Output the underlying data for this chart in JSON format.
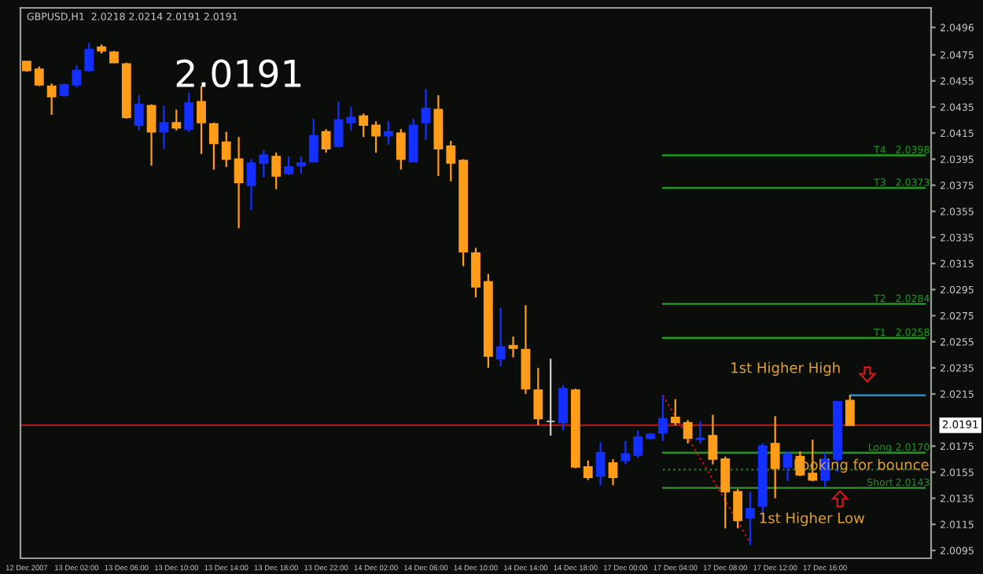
{
  "chart_data": {
    "type": "candlestick",
    "title": "GBPUSD,H1  2.0218 2.0214 2.0191 2.0191",
    "categories": [
      "12 Dec 2007",
      null,
      null,
      null,
      "13 Dec 02:00",
      null,
      null,
      null,
      "13 Dec 06:00",
      null,
      null,
      null,
      "13 Dec 10:00",
      null,
      null,
      null,
      "13 Dec 14:00",
      null,
      null,
      null,
      "13 Dec 18:00",
      null,
      null,
      null,
      "13 Dec 22:00",
      null,
      null,
      null,
      "14 Dec 02:00",
      null,
      null,
      null,
      "14 Dec 06:00",
      null,
      null,
      null,
      "14 Dec 10:00",
      null,
      null,
      null,
      "14 Dec 14:00",
      null,
      null,
      null,
      "14 Dec 18:00",
      null,
      null,
      null,
      "17 Dec 00:00",
      null,
      null,
      null,
      "17 Dec 04:00",
      null,
      null,
      null,
      "17 Dec 08:00",
      null,
      null,
      null,
      "17 Dec 12:00",
      null,
      null,
      null,
      "17 Dec 16:00",
      null,
      null,
      null,
      null,
      null,
      null,
      null,
      null
    ],
    "ohlc": [
      [
        2.047,
        2.047,
        2.0462,
        2.0463
      ],
      [
        2.0464,
        2.0466,
        2.0451,
        2.0452
      ],
      [
        2.0451,
        2.0453,
        2.0429,
        2.0443
      ],
      [
        2.0444,
        2.0453,
        2.0443,
        2.0452
      ],
      [
        2.0452,
        2.0467,
        2.045,
        2.0463
      ],
      [
        2.0463,
        2.0484,
        2.0462,
        2.0479
      ],
      [
        2.0481,
        2.0483,
        2.0476,
        2.0478
      ],
      [
        2.0477,
        2.0478,
        2.0469,
        2.0469
      ],
      [
        2.0468,
        2.0469,
        2.0426,
        2.0427
      ],
      [
        2.0421,
        2.0444,
        2.0417,
        2.0437
      ],
      [
        2.0436,
        2.0437,
        2.039,
        2.0416
      ],
      [
        2.0416,
        2.0436,
        2.0403,
        2.0423
      ],
      [
        2.0423,
        2.0433,
        2.0417,
        2.0419
      ],
      [
        2.0418,
        2.0446,
        2.0416,
        2.0438
      ],
      [
        2.0439,
        2.0451,
        2.0399,
        2.0423
      ],
      [
        2.0422,
        2.0423,
        2.0387,
        2.0407
      ],
      [
        2.0408,
        2.0416,
        2.0389,
        2.0395
      ],
      [
        2.0395,
        2.0412,
        2.0342,
        2.0377
      ],
      [
        2.0375,
        2.0395,
        2.0356,
        2.0392
      ],
      [
        2.0392,
        2.0402,
        2.0381,
        2.0398
      ],
      [
        2.0397,
        2.04,
        2.0372,
        2.0382
      ],
      [
        2.0384,
        2.0397,
        2.0383,
        2.0389
      ],
      [
        2.039,
        2.0397,
        2.0384,
        2.0392
      ],
      [
        2.0393,
        2.0426,
        2.0393,
        2.0413
      ],
      [
        2.0416,
        2.0418,
        2.04,
        2.0403
      ],
      [
        2.0405,
        2.0439,
        2.0404,
        2.0425
      ],
      [
        2.0423,
        2.0435,
        2.0417,
        2.0427
      ],
      [
        2.0428,
        2.043,
        2.0412,
        2.0421
      ],
      [
        2.0421,
        2.0424,
        2.04,
        2.0413
      ],
      [
        2.0413,
        2.0424,
        2.0406,
        2.0416
      ],
      [
        2.0415,
        2.0418,
        2.0387,
        2.0395
      ],
      [
        2.0393,
        2.0426,
        2.0393,
        2.0421
      ],
      [
        2.0423,
        2.0449,
        2.041,
        2.0434
      ],
      [
        2.0433,
        2.0444,
        2.0382,
        2.0403
      ],
      [
        2.0405,
        2.0409,
        2.0378,
        2.0392
      ],
      [
        2.0394,
        2.0395,
        2.0313,
        2.0324
      ],
      [
        2.0323,
        2.0327,
        2.0289,
        2.0297
      ],
      [
        2.0301,
        2.0307,
        2.0235,
        2.0244
      ],
      [
        2.0242,
        2.0281,
        2.0236,
        2.0251
      ],
      [
        2.0252,
        2.0259,
        2.0243,
        2.025
      ],
      [
        2.0249,
        2.0283,
        2.0215,
        2.0219
      ],
      [
        2.0218,
        2.0235,
        2.0191,
        2.0196
      ],
      [
        2.0194,
        2.0242,
        2.0183,
        2.0194
      ],
      [
        2.0193,
        2.0222,
        2.0187,
        2.0219
      ],
      [
        2.0218,
        2.0219,
        2.0158,
        2.0159
      ],
      [
        2.0159,
        2.0164,
        2.0149,
        2.0151
      ],
      [
        2.0152,
        2.0178,
        2.0145,
        2.017
      ],
      [
        2.0162,
        2.0165,
        2.0145,
        2.0151
      ],
      [
        2.0164,
        2.0179,
        2.0161,
        2.0169
      ],
      [
        2.0168,
        2.0187,
        2.0166,
        2.0182
      ],
      [
        2.0181,
        2.0185,
        2.018,
        2.0184
      ],
      [
        2.0185,
        2.0214,
        2.0179,
        2.0196
      ],
      [
        2.0197,
        2.0211,
        2.0191,
        2.0193
      ],
      [
        2.0193,
        2.0195,
        2.0177,
        2.0181
      ],
      [
        2.018,
        2.0194,
        2.0177,
        2.0181
      ],
      [
        2.0183,
        2.0199,
        2.0161,
        2.0165
      ],
      [
        2.0165,
        2.0167,
        2.0112,
        2.014
      ],
      [
        2.014,
        2.0142,
        2.0112,
        2.0118
      ],
      [
        2.012,
        2.014,
        2.0099,
        2.0127
      ],
      [
        2.0129,
        2.0177,
        2.0117,
        2.0175
      ],
      [
        2.0177,
        2.0198,
        2.0135,
        2.0158
      ],
      [
        2.0159,
        2.0171,
        2.0148,
        2.0169
      ],
      [
        2.0167,
        2.0171,
        2.0152,
        2.0153
      ],
      [
        2.0154,
        2.018,
        2.0148,
        2.0149
      ],
      [
        2.0149,
        2.017,
        2.0144,
        2.0165
      ],
      [
        2.0165,
        2.0209,
        2.0155,
        2.0209
      ],
      [
        2.021,
        2.0214,
        2.0191,
        2.0191
      ],
      null,
      null,
      null,
      null,
      null,
      null
    ],
    "colors": [
      "#ff9c1a",
      "#ff9c1a",
      "#ff9c1a",
      "#1430ff",
      "#1430ff",
      "#1430ff",
      "#ff9c1a",
      "#ff9c1a",
      "#ff9c1a",
      "#1430ff",
      "#ff9c1a",
      "#1430ff",
      "#ff9c1a",
      "#1430ff",
      "#ff9c1a",
      "#ff9c1a",
      "#ff9c1a",
      "#ff9c1a",
      "#1430ff",
      "#1430ff",
      "#ff9c1a",
      "#1430ff",
      "#1430ff",
      "#1430ff",
      "#ff9c1a",
      "#1430ff",
      "#1430ff",
      "#ff9c1a",
      "#ff9c1a",
      "#1430ff",
      "#ff9c1a",
      "#1430ff",
      "#1430ff",
      "#ff9c1a",
      "#ff9c1a",
      "#ff9c1a",
      "#ff9c1a",
      "#ff9c1a",
      "#1430ff",
      "#ff9c1a",
      "#ff9c1a",
      "#ff9c1a",
      "#d0d0d0",
      "#1430ff",
      "#ff9c1a",
      "#ff9c1a",
      "#1430ff",
      "#ff9c1a",
      "#1430ff",
      "#1430ff",
      "#1430ff",
      "#1430ff",
      "#ff9c1a",
      "#ff9c1a",
      "#1430ff",
      "#ff9c1a",
      "#ff9c1a",
      "#ff9c1a",
      "#1430ff",
      "#1430ff",
      "#ff9c1a",
      "#1430ff",
      "#ff9c1a",
      "#ff9c1a",
      "#1430ff",
      "#1430ff",
      "#ff9c1a",
      null,
      null,
      null,
      null,
      null,
      null
    ],
    "series": [
      {
        "type": "line",
        "name": "T4",
        "color": "#1f9a1f",
        "line_style": "solid",
        "values": [
          null,
          null,
          null,
          null,
          null,
          null,
          null,
          null,
          null,
          null,
          null,
          null,
          null,
          null,
          null,
          null,
          null,
          null,
          null,
          null,
          null,
          null,
          null,
          null,
          null,
          null,
          null,
          null,
          null,
          null,
          null,
          null,
          null,
          null,
          null,
          null,
          null,
          null,
          null,
          null,
          null,
          null,
          null,
          null,
          null,
          null,
          null,
          null,
          null,
          null,
          null,
          2.0398,
          null,
          null,
          null,
          null,
          null,
          null,
          null,
          null,
          null,
          null,
          null,
          null,
          null,
          null,
          null,
          null,
          null,
          null,
          null,
          null,
          2.0398
        ],
        "value_labels": [
          null,
          null,
          null,
          null,
          null,
          null,
          null,
          null,
          null,
          null,
          null,
          null,
          null,
          null,
          null,
          null,
          null,
          null,
          null,
          null,
          null,
          null,
          null,
          null,
          null,
          null,
          null,
          null,
          null,
          null,
          null,
          null,
          null,
          null,
          null,
          null,
          null,
          null,
          null,
          null,
          null,
          null,
          null,
          null,
          null,
          null,
          null,
          null,
          null,
          null,
          null,
          null,
          null,
          null,
          null,
          null,
          null,
          null,
          null,
          null,
          null,
          null,
          null,
          null,
          null,
          null,
          null,
          null,
          null,
          null,
          null,
          null,
          "2.0398"
        ]
      },
      {
        "type": "line",
        "name": "T3",
        "color": "#1f9a1f",
        "line_style": "solid",
        "values": [
          null,
          null,
          null,
          null,
          null,
          null,
          null,
          null,
          null,
          null,
          null,
          null,
          null,
          null,
          null,
          null,
          null,
          null,
          null,
          null,
          null,
          null,
          null,
          null,
          null,
          null,
          null,
          null,
          null,
          null,
          null,
          null,
          null,
          null,
          null,
          null,
          null,
          null,
          null,
          null,
          null,
          null,
          null,
          null,
          null,
          null,
          null,
          null,
          null,
          null,
          null,
          2.0373,
          null,
          null,
          null,
          null,
          null,
          null,
          null,
          null,
          null,
          null,
          null,
          null,
          null,
          null,
          null,
          null,
          null,
          null,
          null,
          null,
          2.0373
        ],
        "value_labels": [
          null,
          null,
          null,
          null,
          null,
          null,
          null,
          null,
          null,
          null,
          null,
          null,
          null,
          null,
          null,
          null,
          null,
          null,
          null,
          null,
          null,
          null,
          null,
          null,
          null,
          null,
          null,
          null,
          null,
          null,
          null,
          null,
          null,
          null,
          null,
          null,
          null,
          null,
          null,
          null,
          null,
          null,
          null,
          null,
          null,
          null,
          null,
          null,
          null,
          null,
          null,
          null,
          null,
          null,
          null,
          null,
          null,
          null,
          null,
          null,
          null,
          null,
          null,
          null,
          null,
          null,
          null,
          null,
          null,
          null,
          null,
          null,
          "2.0373"
        ]
      },
      {
        "type": "line",
        "name": "T2",
        "color": "#1f9a1f",
        "line_style": "solid",
        "values": [
          null,
          null,
          null,
          null,
          null,
          null,
          null,
          null,
          null,
          null,
          null,
          null,
          null,
          null,
          null,
          null,
          null,
          null,
          null,
          null,
          null,
          null,
          null,
          null,
          null,
          null,
          null,
          null,
          null,
          null,
          null,
          null,
          null,
          null,
          null,
          null,
          null,
          null,
          null,
          null,
          null,
          null,
          null,
          null,
          null,
          null,
          null,
          null,
          null,
          null,
          null,
          2.0284,
          null,
          null,
          null,
          null,
          null,
          null,
          null,
          null,
          null,
          null,
          null,
          null,
          null,
          null,
          null,
          null,
          null,
          null,
          null,
          null,
          2.0284
        ],
        "value_labels": [
          null,
          null,
          null,
          null,
          null,
          null,
          null,
          null,
          null,
          null,
          null,
          null,
          null,
          null,
          null,
          null,
          null,
          null,
          null,
          null,
          null,
          null,
          null,
          null,
          null,
          null,
          null,
          null,
          null,
          null,
          null,
          null,
          null,
          null,
          null,
          null,
          null,
          null,
          null,
          null,
          null,
          null,
          null,
          null,
          null,
          null,
          null,
          null,
          null,
          null,
          null,
          null,
          null,
          null,
          null,
          null,
          null,
          null,
          null,
          null,
          null,
          null,
          null,
          null,
          null,
          null,
          null,
          null,
          null,
          null,
          null,
          null,
          "2.0284"
        ]
      },
      {
        "type": "line",
        "name": "T1",
        "color": "#1f9a1f",
        "line_style": "solid",
        "values": [
          null,
          null,
          null,
          null,
          null,
          null,
          null,
          null,
          null,
          null,
          null,
          null,
          null,
          null,
          null,
          null,
          null,
          null,
          null,
          null,
          null,
          null,
          null,
          null,
          null,
          null,
          null,
          null,
          null,
          null,
          null,
          null,
          null,
          null,
          null,
          null,
          null,
          null,
          null,
          null,
          null,
          null,
          null,
          null,
          null,
          null,
          null,
          null,
          null,
          null,
          null,
          2.0258,
          null,
          null,
          null,
          null,
          null,
          null,
          null,
          null,
          null,
          null,
          null,
          null,
          null,
          null,
          null,
          null,
          null,
          null,
          null,
          null,
          2.0258
        ],
        "value_labels": [
          null,
          null,
          null,
          null,
          null,
          null,
          null,
          null,
          null,
          null,
          null,
          null,
          null,
          null,
          null,
          null,
          null,
          null,
          null,
          null,
          null,
          null,
          null,
          null,
          null,
          null,
          null,
          null,
          null,
          null,
          null,
          null,
          null,
          null,
          null,
          null,
          null,
          null,
          null,
          null,
          null,
          null,
          null,
          null,
          null,
          null,
          null,
          null,
          null,
          null,
          null,
          null,
          null,
          null,
          null,
          null,
          null,
          null,
          null,
          null,
          null,
          null,
          null,
          null,
          null,
          null,
          null,
          null,
          null,
          null,
          null,
          null,
          "2.0258"
        ]
      },
      {
        "type": "line",
        "name": "Long",
        "color": "#2c8c2c",
        "line_style": "solid",
        "values": [
          null,
          null,
          null,
          null,
          null,
          null,
          null,
          null,
          null,
          null,
          null,
          null,
          null,
          null,
          null,
          null,
          null,
          null,
          null,
          null,
          null,
          null,
          null,
          null,
          null,
          null,
          null,
          null,
          null,
          null,
          null,
          null,
          null,
          null,
          null,
          null,
          null,
          null,
          null,
          null,
          null,
          null,
          null,
          null,
          null,
          null,
          null,
          null,
          null,
          null,
          null,
          2.017,
          null,
          null,
          null,
          null,
          null,
          null,
          null,
          null,
          null,
          null,
          null,
          null,
          null,
          null,
          null,
          null,
          null,
          null,
          null,
          null,
          2.017
        ],
        "value_labels": [
          null,
          null,
          null,
          null,
          null,
          null,
          null,
          null,
          null,
          null,
          null,
          null,
          null,
          null,
          null,
          null,
          null,
          null,
          null,
          null,
          null,
          null,
          null,
          null,
          null,
          null,
          null,
          null,
          null,
          null,
          null,
          null,
          null,
          null,
          null,
          null,
          null,
          null,
          null,
          null,
          null,
          null,
          null,
          null,
          null,
          null,
          null,
          null,
          null,
          null,
          null,
          null,
          null,
          null,
          null,
          null,
          null,
          null,
          null,
          null,
          null,
          null,
          null,
          null,
          null,
          null,
          null,
          null,
          null,
          null,
          null,
          null,
          "2.0170"
        ]
      },
      {
        "type": "line",
        "color": "#2e6e2e",
        "line_style": "dotted",
        "values": [
          null,
          null,
          null,
          null,
          null,
          null,
          null,
          null,
          null,
          null,
          null,
          null,
          null,
          null,
          null,
          null,
          null,
          null,
          null,
          null,
          null,
          null,
          null,
          null,
          null,
          null,
          null,
          null,
          null,
          null,
          null,
          null,
          null,
          null,
          null,
          null,
          null,
          null,
          null,
          null,
          null,
          null,
          null,
          null,
          null,
          null,
          null,
          null,
          null,
          null,
          null,
          2.0157,
          null,
          null,
          null,
          null,
          null,
          null,
          null,
          null,
          null,
          null,
          null,
          null,
          null,
          null,
          null,
          null,
          null,
          null,
          null,
          null,
          2.0157
        ]
      },
      {
        "type": "line",
        "name": "Short",
        "color": "#2c8c2c",
        "line_style": "solid",
        "values": [
          null,
          null,
          null,
          null,
          null,
          null,
          null,
          null,
          null,
          null,
          null,
          null,
          null,
          null,
          null,
          null,
          null,
          null,
          null,
          null,
          null,
          null,
          null,
          null,
          null,
          null,
          null,
          null,
          null,
          null,
          null,
          null,
          null,
          null,
          null,
          null,
          null,
          null,
          null,
          null,
          null,
          null,
          null,
          null,
          null,
          null,
          null,
          null,
          null,
          null,
          null,
          2.0143,
          null,
          null,
          null,
          null,
          null,
          null,
          null,
          null,
          null,
          null,
          null,
          null,
          null,
          null,
          null,
          null,
          null,
          null,
          null,
          null,
          2.0143
        ],
        "value_labels": [
          null,
          null,
          null,
          null,
          null,
          null,
          null,
          null,
          null,
          null,
          null,
          null,
          null,
          null,
          null,
          null,
          null,
          null,
          null,
          null,
          null,
          null,
          null,
          null,
          null,
          null,
          null,
          null,
          null,
          null,
          null,
          null,
          null,
          null,
          null,
          null,
          null,
          null,
          null,
          null,
          null,
          null,
          null,
          null,
          null,
          null,
          null,
          null,
          null,
          null,
          null,
          null,
          null,
          null,
          null,
          null,
          null,
          null,
          null,
          null,
          null,
          null,
          null,
          null,
          null,
          null,
          null,
          null,
          null,
          null,
          null,
          null,
          "2.0143"
        ]
      },
      {
        "type": "line",
        "color": "#2a8fd0",
        "line_style": "solid",
        "values": [
          null,
          null,
          null,
          null,
          null,
          null,
          null,
          null,
          null,
          null,
          null,
          null,
          null,
          null,
          null,
          null,
          null,
          null,
          null,
          null,
          null,
          null,
          null,
          null,
          null,
          null,
          null,
          null,
          null,
          null,
          null,
          null,
          null,
          null,
          null,
          null,
          null,
          null,
          null,
          null,
          null,
          null,
          null,
          null,
          null,
          null,
          null,
          null,
          null,
          null,
          null,
          null,
          null,
          null,
          null,
          null,
          null,
          null,
          null,
          null,
          null,
          null,
          null,
          null,
          null,
          null,
          2.0214,
          null,
          null,
          null,
          null,
          null,
          2.0214
        ]
      },
      {
        "type": "line",
        "color": "#c01010",
        "line_style": "dotted",
        "values": [
          null,
          null,
          null,
          null,
          null,
          null,
          null,
          null,
          null,
          null,
          null,
          null,
          null,
          null,
          null,
          null,
          null,
          null,
          null,
          null,
          null,
          null,
          null,
          null,
          null,
          null,
          null,
          null,
          null,
          null,
          null,
          null,
          null,
          null,
          null,
          null,
          null,
          null,
          null,
          null,
          null,
          null,
          null,
          null,
          null,
          null,
          null,
          null,
          null,
          null,
          null,
          2.0214,
          null,
          null,
          null,
          null,
          null,
          null,
          2.0101,
          null,
          null,
          null,
          null,
          null,
          null,
          null,
          null,
          null,
          null,
          null,
          null,
          null,
          null
        ]
      }
    ],
    "ref_lines": [
      {
        "axis": "y",
        "value": 2.0191,
        "label": "2.0191",
        "color": "#b01010"
      }
    ],
    "annotations": [
      "2.0191",
      "1st Higher High",
      "1st Higher Low",
      "Looking for bounce"
    ],
    "ylim": [
      2.0089,
      2.0511
    ],
    "yticks": [
      2.0095,
      2.0115,
      2.0135,
      2.0155,
      2.0175,
      2.0215,
      2.0235,
      2.0255,
      2.0275,
      2.0295,
      2.0315,
      2.0335,
      2.0355,
      2.0375,
      2.0395,
      2.0415,
      2.0435,
      2.0455,
      2.0475,
      2.0496
    ]
  }
}
